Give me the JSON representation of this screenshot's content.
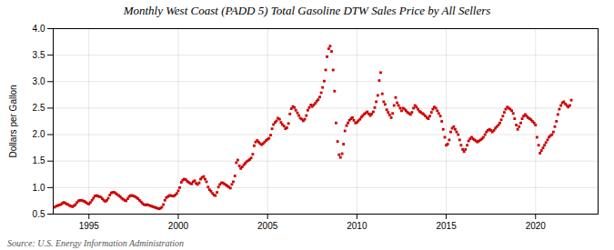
{
  "chart_data": {
    "type": "scatter",
    "title": "Monthly West Coast (PADD 5) Total Gasoline DTW Sales Price by All Sellers",
    "ylabel": "Dollars per Gallon",
    "annotation": "Source: U.S. Energy Information Administration",
    "color": "#cc0000",
    "marker": "square",
    "grid": true,
    "xlim": [
      1993.0,
      2023.5
    ],
    "ylim": [
      0.5,
      4.0
    ],
    "xticks": [
      1995,
      2000,
      2005,
      2010,
      2015,
      2020
    ],
    "yticks": [
      0.5,
      {
        "value": 1.0,
        "label": "1.0"
      },
      1.5,
      {
        "value": 2.0,
        "label": "2.0"
      },
      2.5,
      {
        "value": 3.0,
        "label": "3.0"
      },
      3.5,
      {
        "value": 4.0,
        "label": "4.0"
      }
    ],
    "x": [
      1993.08,
      1993.17,
      1993.25,
      1993.33,
      1993.42,
      1993.5,
      1993.58,
      1993.67,
      1993.75,
      1993.83,
      1993.92,
      1994.0,
      1994.08,
      1994.17,
      1994.25,
      1994.33,
      1994.42,
      1994.5,
      1994.58,
      1994.67,
      1994.75,
      1994.83,
      1994.92,
      1995.0,
      1995.08,
      1995.17,
      1995.25,
      1995.33,
      1995.42,
      1995.5,
      1995.58,
      1995.67,
      1995.75,
      1995.83,
      1995.92,
      1996.0,
      1996.08,
      1996.17,
      1996.25,
      1996.33,
      1996.42,
      1996.5,
      1996.58,
      1996.67,
      1996.75,
      1996.83,
      1996.92,
      1997.0,
      1997.08,
      1997.17,
      1997.25,
      1997.33,
      1997.42,
      1997.5,
      1997.58,
      1997.67,
      1997.75,
      1997.83,
      1997.92,
      1998.0,
      1998.08,
      1998.17,
      1998.25,
      1998.33,
      1998.42,
      1998.5,
      1998.58,
      1998.67,
      1998.75,
      1998.83,
      1998.92,
      1999.0,
      1999.08,
      1999.17,
      1999.25,
      1999.33,
      1999.42,
      1999.5,
      1999.58,
      1999.67,
      1999.75,
      1999.83,
      1999.92,
      2000.0,
      2000.08,
      2000.17,
      2000.25,
      2000.33,
      2000.42,
      2000.5,
      2000.58,
      2000.67,
      2000.75,
      2000.83,
      2000.92,
      2001.0,
      2001.08,
      2001.17,
      2001.25,
      2001.33,
      2001.42,
      2001.5,
      2001.58,
      2001.67,
      2001.75,
      2001.83,
      2001.92,
      2002.0,
      2002.08,
      2002.17,
      2002.25,
      2002.33,
      2002.42,
      2002.5,
      2002.58,
      2002.67,
      2002.75,
      2002.83,
      2002.92,
      2003.0,
      2003.08,
      2003.17,
      2003.25,
      2003.33,
      2003.42,
      2003.5,
      2003.58,
      2003.67,
      2003.75,
      2003.83,
      2003.92,
      2004.0,
      2004.08,
      2004.17,
      2004.25,
      2004.33,
      2004.42,
      2004.5,
      2004.58,
      2004.67,
      2004.75,
      2004.83,
      2004.92,
      2005.0,
      2005.08,
      2005.17,
      2005.25,
      2005.33,
      2005.42,
      2005.5,
      2005.58,
      2005.67,
      2005.75,
      2005.83,
      2005.92,
      2006.0,
      2006.08,
      2006.17,
      2006.25,
      2006.33,
      2006.42,
      2006.5,
      2006.58,
      2006.67,
      2006.75,
      2006.83,
      2006.92,
      2007.0,
      2007.08,
      2007.17,
      2007.25,
      2007.33,
      2007.42,
      2007.5,
      2007.58,
      2007.67,
      2007.75,
      2007.83,
      2007.92,
      2008.0,
      2008.08,
      2008.17,
      2008.25,
      2008.33,
      2008.42,
      2008.5,
      2008.58,
      2008.67,
      2008.75,
      2008.83,
      2008.92,
      2009.0,
      2009.08,
      2009.17,
      2009.25,
      2009.33,
      2009.42,
      2009.5,
      2009.58,
      2009.67,
      2009.75,
      2009.83,
      2009.92,
      2010.0,
      2010.08,
      2010.17,
      2010.25,
      2010.33,
      2010.42,
      2010.5,
      2010.58,
      2010.67,
      2010.75,
      2010.83,
      2010.92,
      2011.0,
      2011.08,
      2011.17,
      2011.25,
      2011.33,
      2011.42,
      2011.5,
      2011.58,
      2011.67,
      2011.75,
      2011.83,
      2011.92,
      2012.0,
      2012.08,
      2012.17,
      2012.25,
      2012.33,
      2012.42,
      2012.5,
      2012.58,
      2012.67,
      2012.75,
      2012.83,
      2012.92,
      2013.0,
      2013.08,
      2013.17,
      2013.25,
      2013.33,
      2013.42,
      2013.5,
      2013.58,
      2013.67,
      2013.75,
      2013.83,
      2013.92,
      2014.0,
      2014.08,
      2014.17,
      2014.25,
      2014.33,
      2014.42,
      2014.5,
      2014.58,
      2014.67,
      2014.75,
      2014.83,
      2014.92,
      2015.0,
      2015.08,
      2015.17,
      2015.25,
      2015.33,
      2015.42,
      2015.5,
      2015.58,
      2015.67,
      2015.75,
      2015.83,
      2015.92,
      2016.0,
      2016.08,
      2016.17,
      2016.25,
      2016.33,
      2016.42,
      2016.5,
      2016.58,
      2016.67,
      2016.75,
      2016.83,
      2016.92,
      2017.0,
      2017.08,
      2017.17,
      2017.25,
      2017.33,
      2017.42,
      2017.5,
      2017.58,
      2017.67,
      2017.75,
      2017.83,
      2017.92,
      2018.0,
      2018.08,
      2018.17,
      2018.25,
      2018.33,
      2018.42,
      2018.5,
      2018.58,
      2018.67,
      2018.75,
      2018.83,
      2018.92,
      2019.0,
      2019.08,
      2019.17,
      2019.25,
      2019.33,
      2019.42,
      2019.5,
      2019.58,
      2019.67,
      2019.75,
      2019.83,
      2019.92,
      2020.0,
      2020.08,
      2020.17,
      2020.25,
      2020.33,
      2020.42,
      2020.5,
      2020.58,
      2020.67,
      2020.75,
      2020.83,
      2020.92,
      2021.0,
      2021.08,
      2021.17,
      2021.25,
      2021.33,
      2021.42,
      2021.5,
      2021.58,
      2021.67,
      2021.75,
      2021.83,
      2021.92,
      2022.0
    ],
    "values": [
      0.63,
      0.65,
      0.66,
      0.67,
      0.68,
      0.7,
      0.72,
      0.71,
      0.69,
      0.68,
      0.66,
      0.65,
      0.64,
      0.66,
      0.68,
      0.72,
      0.75,
      0.76,
      0.76,
      0.75,
      0.74,
      0.72,
      0.7,
      0.69,
      0.72,
      0.76,
      0.8,
      0.84,
      0.85,
      0.84,
      0.83,
      0.82,
      0.79,
      0.76,
      0.74,
      0.76,
      0.8,
      0.86,
      0.9,
      0.91,
      0.91,
      0.89,
      0.87,
      0.85,
      0.83,
      0.8,
      0.78,
      0.76,
      0.75,
      0.79,
      0.83,
      0.85,
      0.85,
      0.84,
      0.83,
      0.81,
      0.79,
      0.76,
      0.73,
      0.7,
      0.68,
      0.67,
      0.68,
      0.67,
      0.66,
      0.65,
      0.64,
      0.63,
      0.62,
      0.61,
      0.6,
      0.61,
      0.63,
      0.68,
      0.76,
      0.81,
      0.83,
      0.85,
      0.85,
      0.84,
      0.84,
      0.86,
      0.89,
      0.94,
      1.0,
      1.1,
      1.14,
      1.16,
      1.15,
      1.12,
      1.1,
      1.08,
      1.07,
      1.11,
      1.13,
      1.08,
      1.06,
      1.09,
      1.16,
      1.19,
      1.21,
      1.16,
      1.11,
      1.01,
      0.96,
      0.93,
      0.89,
      0.86,
      0.85,
      0.91,
      1.01,
      1.06,
      1.09,
      1.09,
      1.07,
      1.05,
      1.03,
      1.01,
      0.99,
      1.06,
      1.11,
      1.22,
      1.47,
      1.52,
      1.41,
      1.36,
      1.39,
      1.43,
      1.46,
      1.49,
      1.51,
      1.53,
      1.56,
      1.63,
      1.79,
      1.86,
      1.89,
      1.86,
      1.83,
      1.81,
      1.83,
      1.86,
      1.89,
      1.91,
      1.93,
      1.99,
      2.11,
      2.19,
      2.23,
      2.26,
      2.31,
      2.29,
      2.23,
      2.19,
      2.16,
      2.11,
      2.13,
      2.21,
      2.39,
      2.49,
      2.53,
      2.51,
      2.46,
      2.41,
      2.36,
      2.31,
      2.29,
      2.26,
      2.29,
      2.36,
      2.46,
      2.51,
      2.56,
      2.53,
      2.56,
      2.59,
      2.63,
      2.66,
      2.71,
      2.79,
      2.89,
      3.01,
      3.22,
      3.47,
      3.62,
      3.67,
      3.57,
      3.22,
      2.82,
      2.22,
      1.87,
      1.62,
      1.57,
      1.64,
      1.82,
      2.07,
      2.17,
      2.22,
      2.27,
      2.3,
      2.32,
      2.27,
      2.22,
      2.23,
      2.26,
      2.29,
      2.33,
      2.36,
      2.39,
      2.41,
      2.43,
      2.39,
      2.36,
      2.39,
      2.43,
      2.51,
      2.62,
      2.74,
      3.02,
      3.17,
      2.77,
      2.62,
      2.57,
      2.47,
      2.42,
      2.37,
      2.32,
      2.4,
      2.55,
      2.7,
      2.6,
      2.55,
      2.5,
      2.45,
      2.5,
      2.48,
      2.45,
      2.42,
      2.4,
      2.38,
      2.42,
      2.5,
      2.55,
      2.52,
      2.48,
      2.44,
      2.42,
      2.4,
      2.38,
      2.35,
      2.32,
      2.3,
      2.35,
      2.42,
      2.48,
      2.52,
      2.5,
      2.45,
      2.4,
      2.35,
      2.25,
      2.1,
      1.95,
      1.8,
      1.82,
      1.9,
      2.05,
      2.12,
      2.15,
      2.1,
      2.05,
      2.0,
      1.9,
      1.8,
      1.72,
      1.68,
      1.72,
      1.8,
      1.88,
      1.92,
      1.95,
      1.92,
      1.9,
      1.88,
      1.86,
      1.88,
      1.9,
      1.92,
      1.95,
      2.0,
      2.05,
      2.08,
      2.1,
      2.08,
      2.05,
      2.08,
      2.12,
      2.15,
      2.18,
      2.22,
      2.28,
      2.35,
      2.42,
      2.48,
      2.52,
      2.5,
      2.48,
      2.45,
      2.4,
      2.3,
      2.18,
      2.1,
      2.15,
      2.22,
      2.3,
      2.35,
      2.38,
      2.35,
      2.32,
      2.3,
      2.28,
      2.25,
      2.22,
      2.18,
      1.95,
      1.8,
      1.65,
      1.7,
      1.75,
      1.8,
      1.85,
      1.9,
      1.95,
      1.98,
      2.0,
      2.05,
      2.15,
      2.25,
      2.38,
      2.48,
      2.55,
      2.6,
      2.62,
      2.58,
      2.55,
      2.52,
      2.55,
      2.65
    ]
  }
}
